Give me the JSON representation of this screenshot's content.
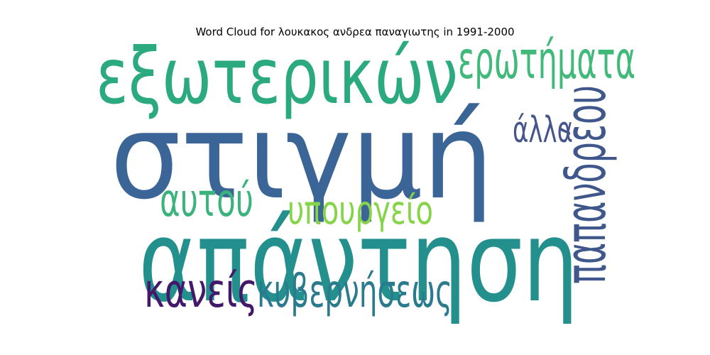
{
  "chart_data": {
    "type": "wordcloud",
    "title": "Word Cloud for λουκακος ανδρεα παναγιωτης in 1991-2000",
    "words": [
      {
        "text": "στιγμή",
        "weight": 1.0,
        "color": "#3b6596"
      },
      {
        "text": "απάντηση",
        "weight": 0.95,
        "color": "#23908d"
      },
      {
        "text": "εξωτερικών",
        "weight": 0.62,
        "color": "#2aaa7e"
      },
      {
        "text": "ερωτήματα",
        "weight": 0.38,
        "color": "#41b97a"
      },
      {
        "text": "παπανδρέου",
        "weight": 0.42,
        "color": "#3f578b"
      },
      {
        "text": "άλλα",
        "weight": 0.23,
        "color": "#46568c"
      },
      {
        "text": "αυτού",
        "weight": 0.32,
        "color": "#3bb37c"
      },
      {
        "text": "υπουργείο",
        "weight": 0.26,
        "color": "#86d449"
      },
      {
        "text": "κανείς",
        "weight": 0.33,
        "color": "#43186a"
      },
      {
        "text": "κυβερνήσεως",
        "weight": 0.32,
        "color": "#2a7b8e"
      }
    ]
  }
}
